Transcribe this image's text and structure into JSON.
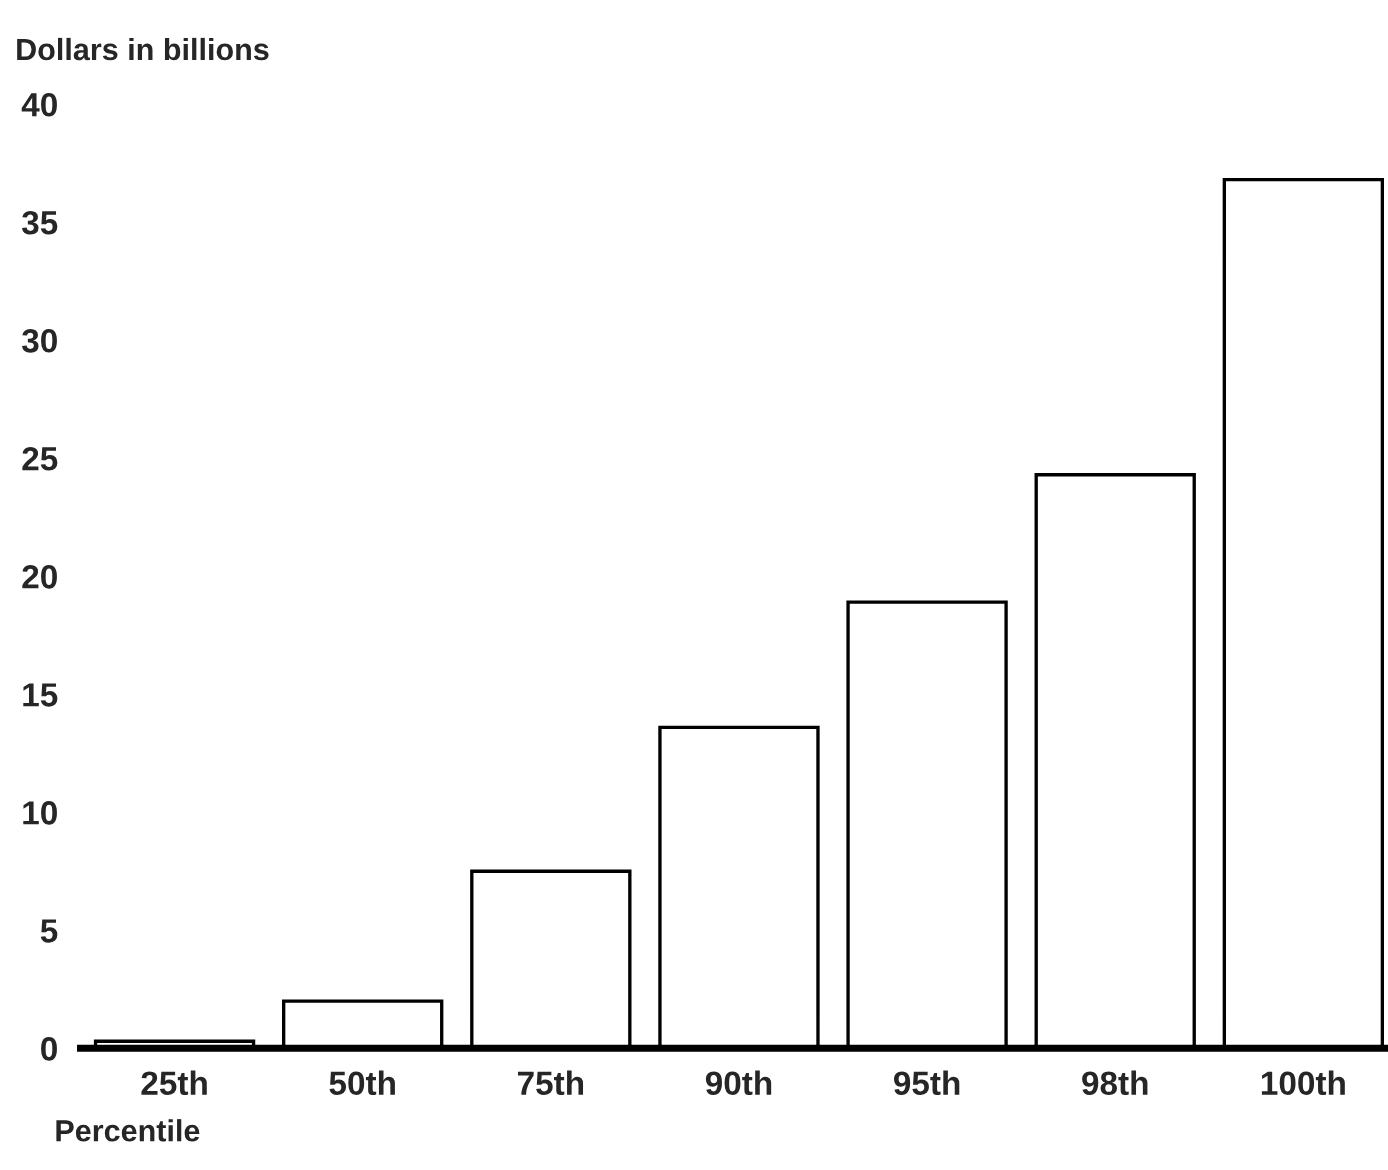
{
  "chart_data": {
    "type": "bar",
    "ylabel": "Dollars in billions",
    "xlabel": "Percentile",
    "categories": [
      "25th",
      "50th",
      "75th",
      "90th",
      "95th",
      "98th",
      "100th"
    ],
    "values": [
      0.3,
      2.0,
      7.5,
      13.6,
      18.9,
      24.3,
      36.8
    ],
    "color": "#ffffff",
    "ylim": [
      0,
      40
    ],
    "yticks": [
      0,
      5,
      10,
      15,
      20,
      25,
      30,
      35,
      40
    ],
    "grid": false,
    "legend": false
  }
}
